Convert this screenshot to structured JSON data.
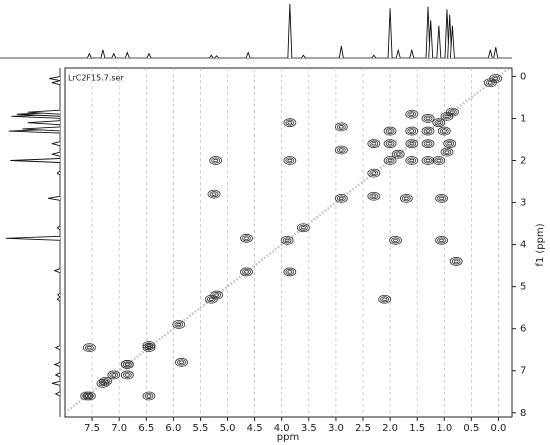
{
  "chart_data": {
    "type": "contour",
    "title": "LrC2F15.7.ser",
    "x_label": "ppm",
    "y_label": "f1 (ppm)",
    "xlim": [
      8.0,
      -0.25
    ],
    "ylim": [
      -0.2,
      8.1
    ],
    "xticks": [
      7.5,
      {
        "value": 7,
        "label": "7.0"
      },
      6.5,
      {
        "value": 6,
        "label": "6.0"
      },
      5.5,
      {
        "value": 5,
        "label": "5.0"
      },
      4.5,
      {
        "value": 4,
        "label": "4.0"
      },
      3.5,
      {
        "value": 3,
        "label": "3.0"
      },
      2.5,
      {
        "value": 2,
        "label": "2.0"
      },
      1.5,
      {
        "value": 1,
        "label": "1.0"
      },
      0.5,
      {
        "value": 0,
        "label": "0.0"
      }
    ],
    "yticks": [
      0,
      1,
      2,
      3,
      4,
      5,
      6,
      7,
      8
    ],
    "grid": true,
    "color": "#333333",
    "x": [
      7.6,
      7.3,
      7.1,
      6.85,
      6.45,
      5.9,
      5.3,
      5.2,
      4.65,
      3.9,
      3.6,
      2.9,
      2.3,
      2.0,
      1.85,
      1.6,
      1.3,
      1.1,
      0.95,
      0.85,
      0.15,
      0.05,
      7.55,
      7.55,
      7.25,
      6.85,
      6.85,
      6.45,
      6.45,
      3.85,
      3.85,
      3.85,
      4.65,
      5.22,
      5.25,
      2.9,
      2.9,
      2.3,
      2.1,
      1.9,
      1.7,
      1.05,
      1.05,
      0.78,
      5.85,
      1.3,
      1.0,
      1.6,
      1.3,
      2.0,
      1.6,
      2.0,
      1.3,
      0.9,
      1.6,
      2.3,
      1.1,
      0.95
    ],
    "values": [
      7.6,
      7.3,
      7.1,
      6.85,
      6.45,
      5.9,
      5.3,
      5.2,
      4.65,
      3.9,
      3.6,
      2.9,
      2.3,
      2.0,
      1.85,
      1.6,
      1.3,
      1.1,
      0.95,
      0.85,
      0.15,
      0.05,
      6.45,
      7.6,
      7.25,
      7.1,
      6.85,
      6.4,
      7.6,
      1.1,
      2.0,
      4.65,
      3.85,
      2.0,
      2.8,
      1.2,
      1.75,
      2.85,
      5.3,
      3.9,
      2.9,
      2.9,
      3.9,
      4.4,
      6.8,
      1.0,
      1.3,
      1.3,
      1.6,
      1.6,
      2.0,
      1.3,
      2.0,
      1.6,
      0.9,
      1.6,
      2.0,
      1.8
    ],
    "projection": {
      "x": [
        7.55,
        7.3,
        7.1,
        6.85,
        6.45,
        5.3,
        5.2,
        4.62,
        3.85,
        3.6,
        2.9,
        2.3,
        2.0,
        1.85,
        1.6,
        1.3,
        1.25,
        1.1,
        0.95,
        0.9,
        0.85,
        0.15,
        0.05
      ],
      "values": [
        8,
        15,
        8,
        10,
        8,
        5,
        4,
        10,
        100,
        5,
        22,
        5,
        92,
        15,
        15,
        95,
        70,
        60,
        90,
        80,
        60,
        15,
        20
      ]
    }
  }
}
